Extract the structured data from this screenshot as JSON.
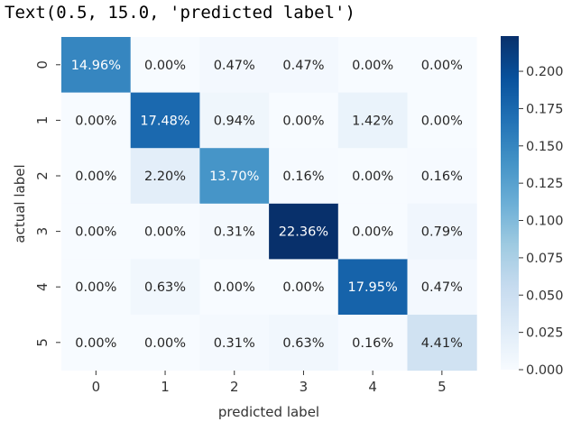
{
  "output_text": "Text(0.5, 15.0, 'predicted label')",
  "chart_data": {
    "type": "heatmap",
    "x_categories": [
      "0",
      "1",
      "2",
      "3",
      "4",
      "5"
    ],
    "y_categories": [
      "0",
      "1",
      "2",
      "3",
      "4",
      "5"
    ],
    "values": [
      [
        0.1496,
        0.0,
        0.0047,
        0.0047,
        0.0,
        0.0
      ],
      [
        0.0,
        0.1748,
        0.0094,
        0.0,
        0.0142,
        0.0
      ],
      [
        0.0,
        0.022,
        0.137,
        0.0016,
        0.0,
        0.0016
      ],
      [
        0.0,
        0.0,
        0.0031,
        0.2236,
        0.0,
        0.0079
      ],
      [
        0.0,
        0.0063,
        0.0,
        0.0,
        0.1795,
        0.0047
      ],
      [
        0.0,
        0.0,
        0.0031,
        0.0063,
        0.0016,
        0.0441
      ]
    ],
    "annotations": [
      [
        "14.96%",
        "0.00%",
        "0.47%",
        "0.47%",
        "0.00%",
        "0.00%"
      ],
      [
        "0.00%",
        "17.48%",
        "0.94%",
        "0.00%",
        "1.42%",
        "0.00%"
      ],
      [
        "0.00%",
        "2.20%",
        "13.70%",
        "0.16%",
        "0.00%",
        "0.16%"
      ],
      [
        "0.00%",
        "0.00%",
        "0.31%",
        "22.36%",
        "0.00%",
        "0.79%"
      ],
      [
        "0.00%",
        "0.63%",
        "0.00%",
        "0.00%",
        "17.95%",
        "0.47%"
      ],
      [
        "0.00%",
        "0.00%",
        "0.31%",
        "0.63%",
        "0.16%",
        "4.41%"
      ]
    ],
    "xlabel": "predicted label",
    "ylabel": "actual label",
    "colormap": "Blues",
    "colorbar": {
      "min": 0.0,
      "max": 0.2236,
      "ticks": [
        "0.000",
        "0.025",
        "0.050",
        "0.075",
        "0.100",
        "0.125",
        "0.150",
        "0.175",
        "0.200"
      ]
    }
  }
}
